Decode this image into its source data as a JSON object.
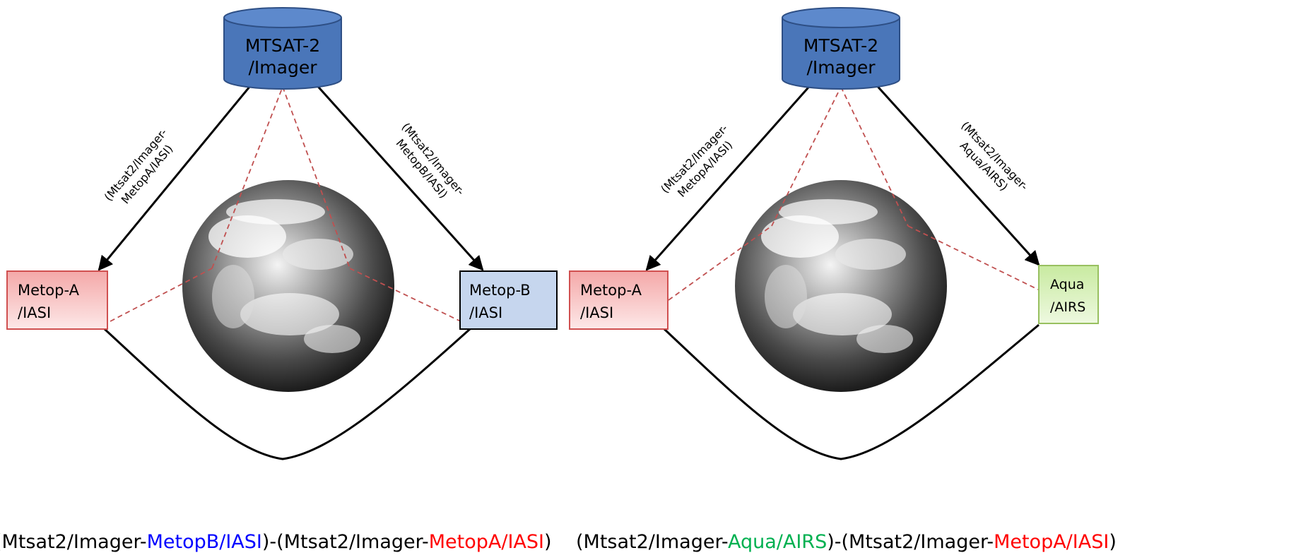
{
  "colors": {
    "cylinder": "#4a76b9",
    "metop_a_fill": "#f6b8b8",
    "metop_a_border": "#d05050",
    "metop_b_fill": "#c6d6ee",
    "aqua_fill": "#d8f0b0",
    "aqua_border": "#98c060",
    "dashed": "#c05050",
    "blue_text": "#0000ff",
    "red_text": "#ff0000",
    "green_text": "#00b050"
  },
  "left_panel": {
    "source": {
      "line1": "MTSAT-2",
      "line2": "/Imager"
    },
    "left_box": {
      "line1": "Metop-A",
      "line2": "/IASI"
    },
    "right_box": {
      "line1": "Metop-B",
      "line2": "/IASI"
    },
    "left_arrow_label": {
      "line1": "(Mtsat2/Imager-",
      "line2": "MetopA/IASI)"
    },
    "right_arrow_label": {
      "line1": "(Mtsat2/Imager-",
      "line2": "MetopB/IASI)"
    },
    "caption": {
      "p1": "(Mtsat2/Imager-",
      "p2": "MetopB/IASI",
      "p3": ")-(Mtsat2/Imager-",
      "p4": "MetopA/IASI",
      "p5": ")"
    }
  },
  "right_panel": {
    "source": {
      "line1": "MTSAT-2",
      "line2": "/Imager"
    },
    "left_box": {
      "line1": "Metop-A",
      "line2": "/IASI"
    },
    "right_box": {
      "line1": "Aqua",
      "line2": "/AIRS"
    },
    "left_arrow_label": {
      "line1": "(Mtsat2/Imager-",
      "line2": "MetopA/IASI)"
    },
    "right_arrow_label": {
      "line1": "(Mtsat2/Imager-",
      "line2": "Aqua/AIRS)"
    },
    "caption": {
      "p1": "(Mtsat2/Imager-",
      "p2": "Aqua/AIRS",
      "p3": ")-(Mtsat2/Imager-",
      "p4": "MetopA/IASI",
      "p5": ")"
    }
  }
}
